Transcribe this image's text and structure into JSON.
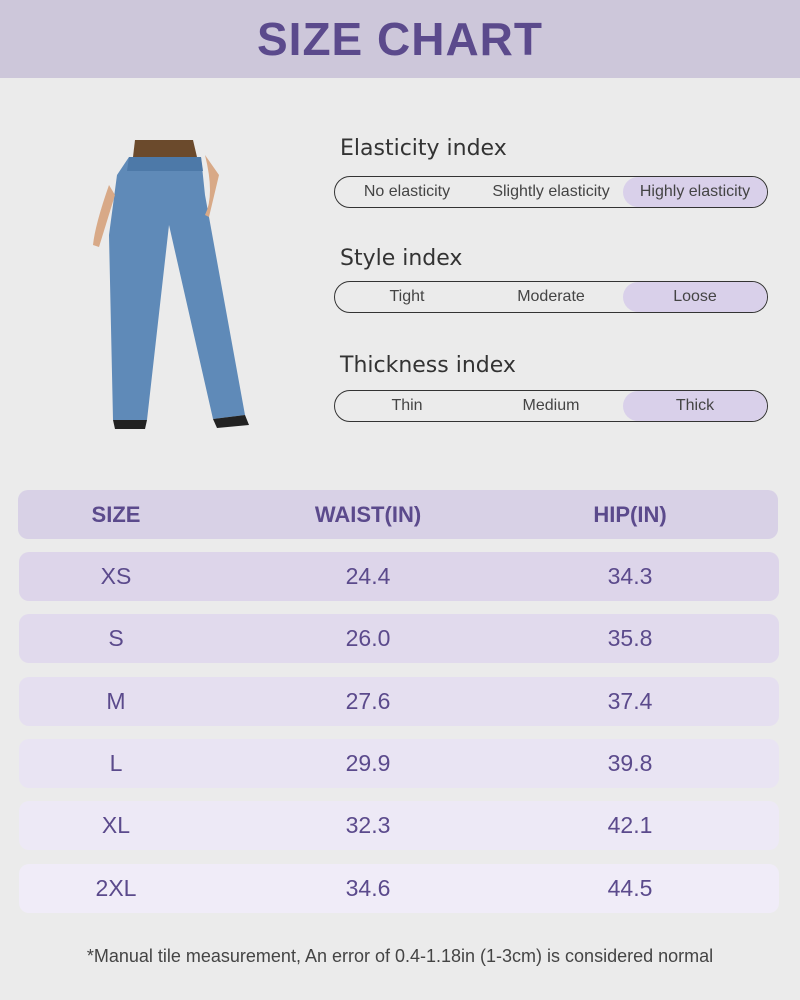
{
  "header": {
    "title": "SIZE CHART"
  },
  "indices": [
    {
      "title": "Elasticity index",
      "options": [
        "No elasticity",
        "Slightly elasticity",
        "Highly elasticity"
      ],
      "selected": 2
    },
    {
      "title": "Style index",
      "options": [
        "Tight",
        "Moderate",
        "Loose"
      ],
      "selected": 2
    },
    {
      "title": "Thickness index",
      "options": [
        "Thin",
        "Medium",
        "Thick"
      ],
      "selected": 2
    }
  ],
  "table": {
    "columns": [
      "SIZE",
      "WAIST(IN)",
      "HIP(IN)"
    ],
    "rows": [
      [
        "XS",
        "24.4",
        "34.3"
      ],
      [
        "S",
        "26.0",
        "35.8"
      ],
      [
        "M",
        "27.6",
        "37.4"
      ],
      [
        "L",
        "29.9",
        "39.8"
      ],
      [
        "XL",
        "32.3",
        "42.1"
      ],
      [
        "2XL",
        "34.6",
        "44.5"
      ]
    ]
  },
  "footnote": "*Manual tile measurement, An error of 0.4-1.18in (1-3cm) is considered normal"
}
